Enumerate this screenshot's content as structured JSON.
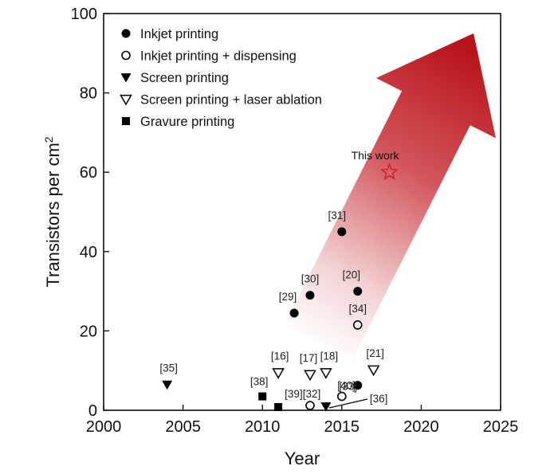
{
  "chart_data": {
    "type": "scatter",
    "title": "",
    "xlabel": "Year",
    "ylabel": "Transistors per cm",
    "ylabel_superscript": "2",
    "xlim": [
      2000,
      2025
    ],
    "ylim": [
      0,
      100
    ],
    "xticks": [
      "2000",
      "2005",
      "2010",
      "2015",
      "2020",
      "2025"
    ],
    "yticks": [
      "0",
      "20",
      "40",
      "60",
      "80",
      "100"
    ],
    "xtick_values": [
      2000,
      2005,
      2010,
      2015,
      2020,
      2025
    ],
    "ytick_values": [
      0,
      20,
      40,
      60,
      80,
      100
    ],
    "legend_position": "top-left",
    "arrow": {
      "from": [
        2013.5,
        17
      ],
      "to": [
        2023.3,
        95
      ],
      "color": "#c0141c"
    },
    "series": [
      {
        "name": "Inkjet printing",
        "marker": "circle-filled",
        "points": [
          {
            "x": 2012,
            "y": 24.5,
            "label": "[29]"
          },
          {
            "x": 2013,
            "y": 29,
            "label": "[30]"
          },
          {
            "x": 2015,
            "y": 45,
            "label": "[31]"
          },
          {
            "x": 2016,
            "y": 30,
            "label": "[20]"
          },
          {
            "x": 2016,
            "y": 6.3,
            "label": "[40]"
          }
        ]
      },
      {
        "name": "Inkjet printing + dispensing",
        "marker": "circle-open",
        "points": [
          {
            "x": 2016,
            "y": 21.5,
            "label": "[34]"
          },
          {
            "x": 2015,
            "y": 3.5,
            "label": "[33]"
          },
          {
            "x": 2013,
            "y": 1.2,
            "label": "[32]"
          }
        ]
      },
      {
        "name": "Screen printing",
        "marker": "triangle-down-filled",
        "points": [
          {
            "x": 2004,
            "y": 6.5,
            "label": "[35]"
          },
          {
            "x": 2014,
            "y": 1,
            "label": "[36]"
          }
        ]
      },
      {
        "name": "Screen printing + laser ablation",
        "marker": "triangle-down-open",
        "points": [
          {
            "x": 2011,
            "y": 9.5,
            "label": "[16]"
          },
          {
            "x": 2013,
            "y": 9,
            "label": "[17]"
          },
          {
            "x": 2014,
            "y": 9.5,
            "label": "[18]"
          },
          {
            "x": 2017,
            "y": 10.2,
            "label": "[21]"
          }
        ]
      },
      {
        "name": "Gravure printing",
        "marker": "square-filled",
        "points": [
          {
            "x": 2010,
            "y": 3.5,
            "label": "[38]"
          },
          {
            "x": 2011,
            "y": 0.8,
            "label": "[39]"
          }
        ]
      }
    ],
    "highlight": {
      "x": 2018,
      "y": 60,
      "label": "This work",
      "marker": "star-open",
      "color": "#d0202a"
    }
  }
}
